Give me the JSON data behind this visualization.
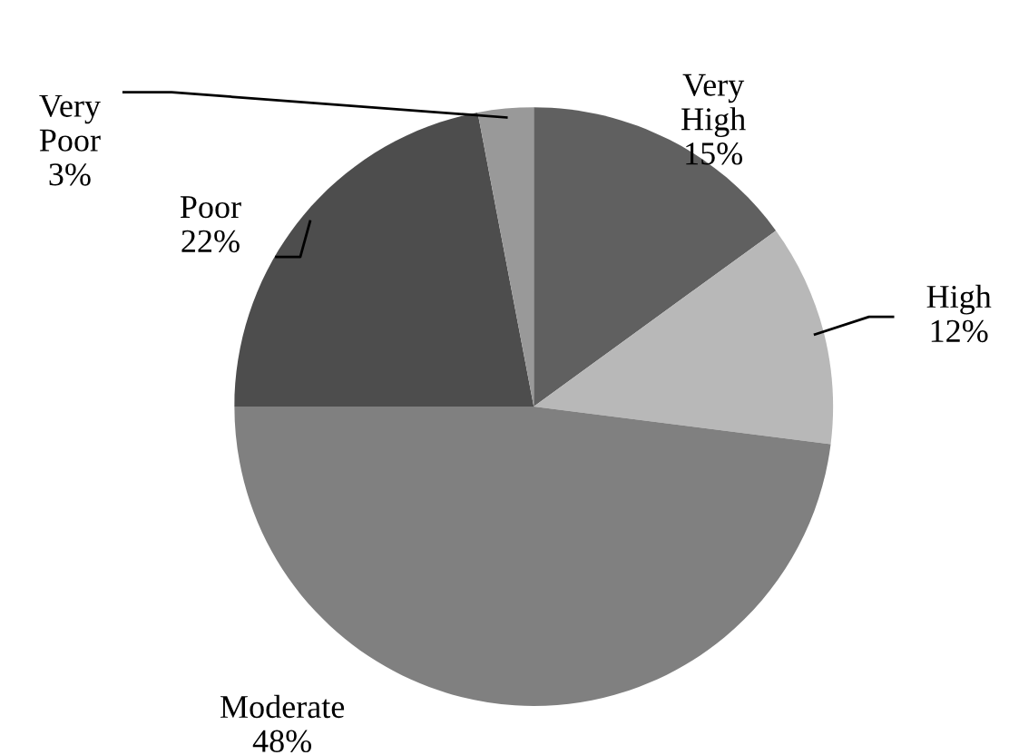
{
  "chart_data": {
    "type": "pie",
    "categories": [
      "Very High",
      "High",
      "Moderate",
      "Poor",
      "Very Poor"
    ],
    "values": [
      15,
      12,
      48,
      22,
      3
    ],
    "colors": [
      "#606060",
      "#b8b8b8",
      "#808080",
      "#4d4d4d",
      "#999999"
    ],
    "value_labels": [
      "15%",
      "12%",
      "48%",
      "22%",
      "3%"
    ],
    "legend": false
  }
}
